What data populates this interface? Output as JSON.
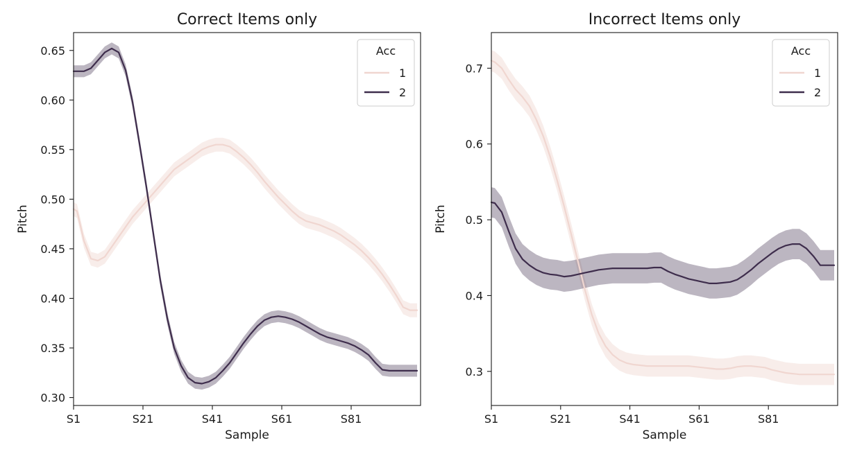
{
  "chart_data": [
    {
      "type": "line",
      "title": "Correct Items only",
      "xlabel": "Sample",
      "ylabel": "Pitch",
      "x_ticks": [
        "S1",
        "S21",
        "S41",
        "S61",
        "S81"
      ],
      "y_ticks": [
        "0.30",
        "0.35",
        "0.40",
        "0.45",
        "0.50",
        "0.55",
        "0.60",
        "0.65"
      ],
      "xlim": [
        1,
        101
      ],
      "ylim": [
        0.292,
        0.668
      ],
      "legend": {
        "title": "Acc",
        "placement": "top-right"
      },
      "x": [
        1,
        2,
        4,
        6,
        8,
        10,
        12,
        14,
        16,
        18,
        20,
        22,
        24,
        26,
        28,
        30,
        32,
        34,
        36,
        38,
        40,
        42,
        44,
        46,
        48,
        50,
        52,
        54,
        56,
        58,
        60,
        62,
        64,
        66,
        68,
        70,
        72,
        74,
        76,
        78,
        80,
        82,
        84,
        86,
        88,
        90,
        92,
        94,
        96,
        98,
        100
      ],
      "series": [
        {
          "name": "1",
          "color": "#f0d6d0",
          "ci_halfwidth": 0.007,
          "values": [
            0.49,
            0.488,
            0.458,
            0.44,
            0.438,
            0.442,
            0.452,
            0.462,
            0.472,
            0.482,
            0.49,
            0.498,
            0.506,
            0.514,
            0.522,
            0.53,
            0.535,
            0.54,
            0.545,
            0.55,
            0.553,
            0.555,
            0.555,
            0.553,
            0.548,
            0.542,
            0.535,
            0.527,
            0.518,
            0.51,
            0.502,
            0.495,
            0.488,
            0.482,
            0.478,
            0.476,
            0.474,
            0.471,
            0.468,
            0.464,
            0.459,
            0.454,
            0.448,
            0.441,
            0.433,
            0.424,
            0.414,
            0.403,
            0.391,
            0.388,
            0.388
          ]
        },
        {
          "name": "2",
          "color": "#3e2d4c",
          "ci_halfwidth": 0.006,
          "values": [
            0.629,
            0.629,
            0.629,
            0.632,
            0.64,
            0.648,
            0.652,
            0.648,
            0.63,
            0.598,
            0.556,
            0.512,
            0.465,
            0.418,
            0.38,
            0.35,
            0.332,
            0.32,
            0.315,
            0.314,
            0.316,
            0.32,
            0.327,
            0.335,
            0.345,
            0.355,
            0.364,
            0.372,
            0.378,
            0.381,
            0.382,
            0.381,
            0.379,
            0.376,
            0.372,
            0.368,
            0.364,
            0.361,
            0.359,
            0.357,
            0.355,
            0.352,
            0.348,
            0.343,
            0.335,
            0.328,
            0.327,
            0.327,
            0.327,
            0.327,
            0.327
          ]
        }
      ]
    },
    {
      "type": "line",
      "title": "Incorrect Items only",
      "xlabel": "Sample",
      "ylabel": "Pitch",
      "x_ticks": [
        "S1",
        "S21",
        "S41",
        "S61",
        "S81"
      ],
      "y_ticks": [
        "0.3",
        "0.4",
        "0.5",
        "0.6",
        "0.7"
      ],
      "xlim": [
        1,
        101
      ],
      "ylim": [
        0.255,
        0.747
      ],
      "legend": {
        "title": "Acc",
        "placement": "top-right"
      },
      "x": [
        1,
        2,
        4,
        6,
        8,
        10,
        12,
        14,
        16,
        18,
        20,
        22,
        24,
        26,
        28,
        30,
        32,
        34,
        36,
        38,
        40,
        42,
        44,
        46,
        48,
        50,
        52,
        54,
        56,
        58,
        60,
        62,
        64,
        66,
        68,
        70,
        72,
        74,
        76,
        78,
        80,
        82,
        84,
        86,
        88,
        90,
        92,
        94,
        96,
        98,
        100
      ],
      "series": [
        {
          "name": "1",
          "color": "#f0d6d0",
          "ci_halfwidth": 0.014,
          "values": [
            0.71,
            0.708,
            0.7,
            0.685,
            0.672,
            0.662,
            0.65,
            0.632,
            0.61,
            0.583,
            0.552,
            0.518,
            0.482,
            0.445,
            0.408,
            0.375,
            0.35,
            0.333,
            0.322,
            0.315,
            0.311,
            0.309,
            0.308,
            0.307,
            0.307,
            0.307,
            0.307,
            0.307,
            0.307,
            0.307,
            0.306,
            0.305,
            0.304,
            0.303,
            0.303,
            0.304,
            0.306,
            0.307,
            0.307,
            0.306,
            0.305,
            0.302,
            0.3,
            0.298,
            0.297,
            0.296,
            0.296,
            0.296,
            0.296,
            0.296,
            0.296
          ]
        },
        {
          "name": "2",
          "color": "#3e2d4c",
          "ci_halfwidth": 0.02,
          "values": [
            0.523,
            0.522,
            0.51,
            0.485,
            0.462,
            0.448,
            0.44,
            0.434,
            0.43,
            0.428,
            0.427,
            0.425,
            0.426,
            0.428,
            0.43,
            0.432,
            0.434,
            0.435,
            0.436,
            0.436,
            0.436,
            0.436,
            0.436,
            0.436,
            0.437,
            0.437,
            0.432,
            0.428,
            0.425,
            0.422,
            0.42,
            0.418,
            0.416,
            0.416,
            0.417,
            0.418,
            0.421,
            0.427,
            0.434,
            0.442,
            0.449,
            0.456,
            0.462,
            0.466,
            0.468,
            0.468,
            0.462,
            0.452,
            0.44,
            0.44,
            0.44
          ]
        }
      ]
    }
  ]
}
